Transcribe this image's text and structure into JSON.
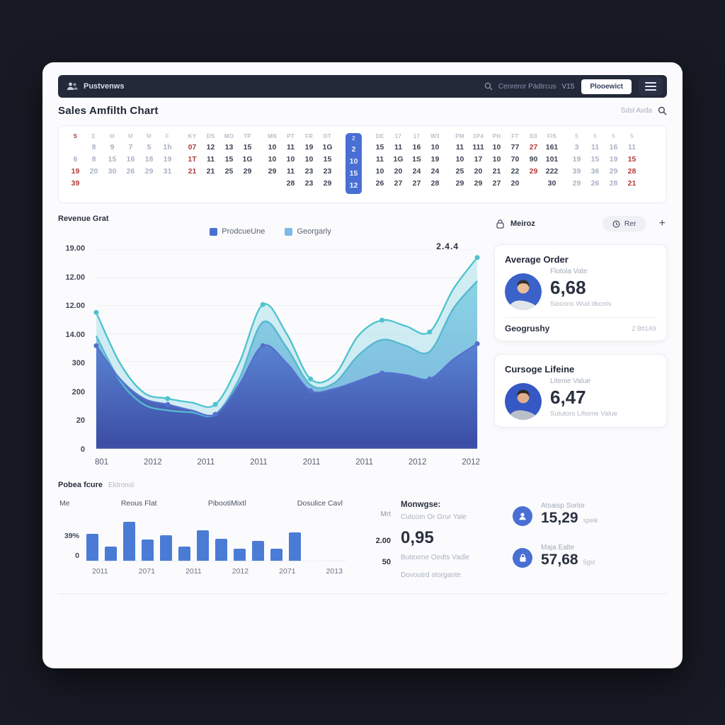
{
  "navbar": {
    "brand": "Pustvenws",
    "search_text": "Cenreror Pädtrcus",
    "search_shortcut": "V15",
    "button_label": "Plooewict"
  },
  "header": {
    "title": "Sales Amfilth Chart",
    "subsearch": "Sdsl Avda"
  },
  "calendar": {
    "blocks": [
      {
        "style": "muted",
        "columns": [
          {
            "header": "!S",
            "cells": [
              "",
              "6",
              "!19",
              "!39"
            ]
          },
          {
            "header": "E",
            "cells": [
              "8",
              "8",
              "20",
              ""
            ]
          },
          {
            "header": "M",
            "cells": [
              "9",
              "15",
              "30",
              ""
            ]
          },
          {
            "header": "M",
            "cells": [
              "7",
              "16",
              "26",
              ""
            ]
          },
          {
            "header": "M",
            "cells": [
              "5",
              "18",
              "29",
              ""
            ]
          },
          {
            "header": "F",
            "cells": [
              "1h",
              "19",
              "31",
              ""
            ]
          }
        ]
      },
      {
        "style": "dark",
        "columns": [
          {
            "header": "KY",
            "cells": [
              "!07",
              "!1T",
              "!21",
              ""
            ]
          },
          {
            "header": "DS",
            "cells": [
              "12",
              "11",
              "21",
              ""
            ]
          },
          {
            "header": "MO",
            "cells": [
              "13",
              "15",
              "25",
              ""
            ]
          },
          {
            "header": "TP",
            "cells": [
              "15",
              "1G",
              "29",
              ""
            ]
          }
        ]
      },
      {
        "style": "dark",
        "columns": [
          {
            "header": "MN",
            "cells": [
              "10",
              "10",
              "29",
              ""
            ]
          },
          {
            "header": "PT",
            "cells": [
              "11",
              "10",
              "11",
              "28"
            ]
          },
          {
            "header": "FR",
            "cells": [
              "19",
              "10",
              "23",
              "23"
            ]
          },
          {
            "header": "DT",
            "cells": [
              "1G",
              "15",
              "23",
              "29"
            ]
          }
        ]
      },
      {
        "style": "highlight",
        "columns": [
          {
            "header": "2",
            "cells": [
              "2",
              "10",
              "15",
              "12"
            ]
          }
        ]
      },
      {
        "style": "dark",
        "columns": [
          {
            "header": "DE",
            "cells": [
              "15",
              "11",
              "10",
              "26"
            ]
          },
          {
            "header": "17",
            "cells": [
              "11",
              "1G",
              "20",
              "27"
            ]
          },
          {
            "header": "17",
            "cells": [
              "16",
              "1S",
              "24",
              "27"
            ]
          },
          {
            "header": "W3",
            "cells": [
              "10",
              "19",
              "24",
              "28"
            ]
          }
        ]
      },
      {
        "style": "dark",
        "columns": [
          {
            "header": "PM",
            "cells": [
              "11",
              "10",
              "25",
              "29"
            ]
          },
          {
            "header": "1P4",
            "cells": [
              "111",
              "17",
              "20",
              "29"
            ]
          },
          {
            "header": "PH",
            "cells": [
              "10",
              "10",
              "21",
              "27"
            ]
          },
          {
            "header": "FT",
            "cells": [
              "77",
              "70",
              "22",
              "20"
            ]
          },
          {
            "header": "D3",
            "cells": [
              "!27",
              "90",
              "!29",
              ""
            ]
          },
          {
            "header": "FIS",
            "cells": [
              "161",
              "101",
              "222",
              "30"
            ]
          }
        ]
      },
      {
        "style": "muted",
        "columns": [
          {
            "header": "5",
            "cells": [
              "3",
              "19",
              "39",
              "29"
            ]
          },
          {
            "header": "5",
            "cells": [
              "11",
              "15",
              "36",
              "26"
            ]
          },
          {
            "header": "5",
            "cells": [
              "16",
              "19",
              "29",
              "28"
            ]
          },
          {
            "header": "5",
            "cells": [
              "11",
              "!15",
              "!28",
              "!21"
            ]
          }
        ]
      }
    ]
  },
  "chart_data": [
    {
      "type": "area",
      "title": "Revenue Grat",
      "legend": [
        {
          "label": "ProdcueUne",
          "color": "#4a6fd4"
        },
        {
          "label": "Georgarly",
          "color": "#7db8e8"
        }
      ],
      "y_ticks": [
        "19.00",
        "12.00",
        "12.00",
        "14.00",
        "300",
        "200",
        "20",
        "0"
      ],
      "x_ticks": [
        "801",
        "2012",
        "2011",
        "2011",
        "2011",
        "2011",
        "2012",
        "2012"
      ],
      "ylim": [
        0,
        100
      ],
      "annotation": {
        "text": "2.4.4",
        "point_index": 16
      },
      "marker_indices": [
        0,
        3,
        5,
        7,
        9,
        12,
        14,
        16
      ],
      "series": [
        {
          "name": "geography-top",
          "color": "#4fc3cf",
          "fill_top": "rgba(171,227,235,0.55)",
          "fill_bottom": "rgba(140,210,226,0.35)",
          "values": [
            68,
            42,
            27,
            24,
            22,
            21,
            42,
            72,
            57,
            34,
            36,
            56,
            64,
            61,
            58,
            80,
            96
          ]
        },
        {
          "name": "geography-mid",
          "color": "#56b8cf",
          "fill_top": "rgba(126,206,227,0.85)",
          "fill_bottom": "rgba(96,164,214,0.75)",
          "values": [
            56,
            33,
            21,
            18,
            17,
            16,
            34,
            63,
            50,
            31,
            32,
            46,
            54,
            51,
            48,
            70,
            84
          ]
        },
        {
          "name": "productline",
          "color": "#5570cc",
          "fill_top": "rgba(88,128,210,0.95)",
          "fill_bottom": "rgba(59,77,165,1)",
          "values": [
            51,
            34,
            24,
            21,
            18,
            16,
            31,
            51,
            42,
            28,
            29,
            33,
            37,
            36,
            34,
            44,
            52
          ]
        }
      ]
    },
    {
      "type": "bar",
      "y_ticks": [
        "39%",
        "0"
      ],
      "values": [
        62,
        32,
        88,
        48,
        58,
        32,
        70,
        50,
        28,
        45,
        28,
        65
      ],
      "x_labels": [
        "2011",
        "2071",
        "2011",
        "2012",
        "2071",
        "2013"
      ],
      "color": "#4a7cd6"
    }
  ],
  "metrics_panel": {
    "header": {
      "label": "Meiroz",
      "pill": "Rer",
      "add": "+"
    },
    "cards": [
      {
        "title": "Average Order",
        "subtitle": "Flotola Vate",
        "value": "6,68",
        "note": "Siocons Wud dkcrris",
        "footer_left": "Geogrushy",
        "footer_right": "2 Btt1A9"
      },
      {
        "title": "Cursoge Lifeine",
        "subtitle": "Litenie Value",
        "value": "6,47",
        "note": "Sututors Lifiome Value"
      }
    ]
  },
  "bottom": {
    "section_title": "Pobea fcure",
    "section_subtitle": "Ektronsl",
    "tabs": [
      "Me",
      "Reous Flat",
      "PibootiMixtl",
      "Dosulice Cavl"
    ],
    "mini": {
      "label": "Mrt",
      "v1": "2.00",
      "v2": "50"
    },
    "metric": {
      "title": "Monwgse:",
      "subtitle": "Cutcom Or Grur Yale",
      "value": "0,95",
      "note": "Butexrne Oedts Vadle",
      "note2": "Dovoutrd storgante"
    },
    "stats": [
      {
        "icon": "user",
        "label": "Atsaisp Sorlor",
        "value": "15,29",
        "suffix": "speik"
      },
      {
        "icon": "lock",
        "label": "Maja Ealte",
        "value": "57,68",
        "suffix": "5gsl"
      }
    ]
  }
}
